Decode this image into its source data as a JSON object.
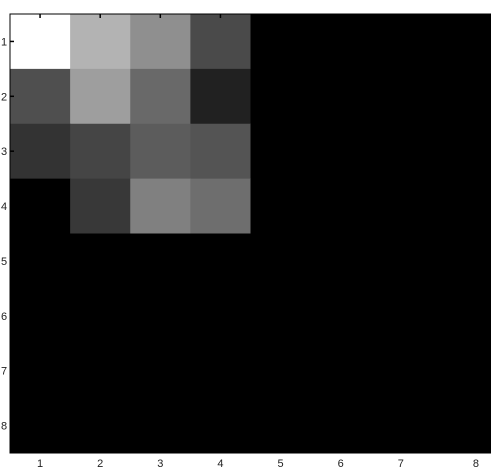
{
  "chart_data": {
    "type": "heatmap",
    "title": "",
    "xlabel": "",
    "ylabel": "",
    "colormap": "gray",
    "value_range": [
      0,
      1
    ],
    "x_ticks": [
      "1",
      "2",
      "3",
      "4",
      "5",
      "6",
      "7",
      "8"
    ],
    "y_ticks": [
      "1",
      "2",
      "3",
      "4",
      "5",
      "6",
      "7",
      "8"
    ],
    "grid": false,
    "values": [
      [
        1.0,
        0.7,
        0.56,
        0.29,
        0,
        0,
        0,
        0
      ],
      [
        0.31,
        0.62,
        0.41,
        0.13,
        0,
        0,
        0,
        0
      ],
      [
        0.2,
        0.27,
        0.36,
        0.33,
        0,
        0,
        0,
        0
      ],
      [
        0.0,
        0.22,
        0.5,
        0.43,
        0,
        0,
        0,
        0
      ],
      [
        0,
        0,
        0,
        0,
        0,
        0,
        0,
        0
      ],
      [
        0,
        0,
        0,
        0,
        0,
        0,
        0,
        0
      ],
      [
        0,
        0,
        0,
        0,
        0,
        0,
        0,
        0
      ],
      [
        0,
        0,
        0,
        0,
        0,
        0,
        0,
        0
      ]
    ]
  }
}
